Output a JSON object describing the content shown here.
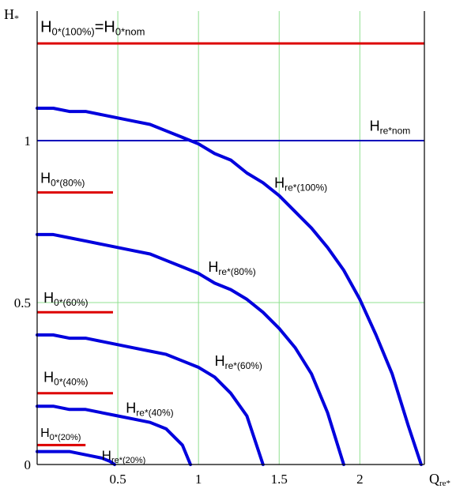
{
  "chart_data": {
    "type": "line",
    "title": "",
    "xlabel": "Q",
    "xlabel_sub": "re*",
    "ylabel": "H",
    "ylabel_sub": "*",
    "xlim": [
      0,
      2.4
    ],
    "ylim": [
      0,
      1.4
    ],
    "grid": true,
    "grid_color": "#90e090",
    "x_ticks": [
      {
        "value": 0.5,
        "label": "0.5"
      },
      {
        "value": 1,
        "label": "1"
      },
      {
        "value": 1.5,
        "label": "1.5"
      },
      {
        "value": 2,
        "label": "2"
      }
    ],
    "y_ticks": [
      {
        "value": 0,
        "label": "0"
      },
      {
        "value": 0.5,
        "label": "0.5"
      },
      {
        "value": 1,
        "label": "1"
      }
    ],
    "series": [
      {
        "color": "#0000dd",
        "width": 4,
        "x": [
          0,
          0.1,
          0.2,
          0.3,
          0.4,
          0.5,
          0.6,
          0.7,
          0.8,
          0.9,
          1.0,
          1.1,
          1.2,
          1.3,
          1.4,
          1.5,
          1.6,
          1.7,
          1.8,
          1.9,
          2.0,
          2.1,
          2.2,
          2.3,
          2.38
        ],
        "y": [
          1.1,
          1.1,
          1.09,
          1.09,
          1.08,
          1.07,
          1.06,
          1.05,
          1.03,
          1.01,
          0.99,
          0.96,
          0.94,
          0.9,
          0.87,
          0.83,
          0.78,
          0.73,
          0.67,
          0.6,
          0.51,
          0.4,
          0.28,
          0.12,
          0.0
        ]
      },
      {
        "color": "#0000dd",
        "width": 4,
        "x": [
          0,
          0.1,
          0.2,
          0.3,
          0.4,
          0.5,
          0.6,
          0.7,
          0.8,
          0.9,
          1.0,
          1.1,
          1.2,
          1.3,
          1.4,
          1.5,
          1.6,
          1.7,
          1.8,
          1.9
        ],
        "y": [
          0.71,
          0.71,
          0.7,
          0.69,
          0.68,
          0.67,
          0.66,
          0.65,
          0.63,
          0.61,
          0.59,
          0.56,
          0.54,
          0.51,
          0.47,
          0.42,
          0.36,
          0.28,
          0.16,
          0.0
        ]
      },
      {
        "color": "#0000dd",
        "width": 4,
        "x": [
          0,
          0.1,
          0.2,
          0.3,
          0.4,
          0.5,
          0.6,
          0.7,
          0.8,
          0.9,
          1.0,
          1.1,
          1.2,
          1.3,
          1.4
        ],
        "y": [
          0.4,
          0.4,
          0.39,
          0.39,
          0.38,
          0.37,
          0.36,
          0.35,
          0.34,
          0.32,
          0.3,
          0.27,
          0.22,
          0.15,
          0.0
        ]
      },
      {
        "color": "#0000dd",
        "width": 4,
        "x": [
          0,
          0.1,
          0.2,
          0.3,
          0.4,
          0.5,
          0.6,
          0.7,
          0.8,
          0.9,
          0.95
        ],
        "y": [
          0.18,
          0.18,
          0.17,
          0.17,
          0.16,
          0.15,
          0.14,
          0.13,
          0.11,
          0.06,
          0.0
        ]
      },
      {
        "color": "#0000dd",
        "width": 4,
        "x": [
          0,
          0.1,
          0.2,
          0.3,
          0.4,
          0.45,
          0.48
        ],
        "y": [
          0.04,
          0.04,
          0.04,
          0.03,
          0.02,
          0.01,
          0.0
        ]
      }
    ],
    "hlines": [
      {
        "y": 1.3,
        "x0": 0,
        "x1": 2.4,
        "color": "#dd0000",
        "width": 3
      },
      {
        "y": 1.0,
        "x0": 0,
        "x1": 2.4,
        "color": "#0000bb",
        "width": 2
      },
      {
        "y": 0.84,
        "x0": 0,
        "x1": 0.47,
        "color": "#dd0000",
        "width": 3
      },
      {
        "y": 0.47,
        "x0": 0,
        "x1": 0.47,
        "color": "#dd0000",
        "width": 3
      },
      {
        "y": 0.22,
        "x0": 0,
        "x1": 0.47,
        "color": "#dd0000",
        "width": 3
      },
      {
        "y": 0.06,
        "x0": 0,
        "x1": 0.3,
        "color": "#dd0000",
        "width": 3
      }
    ],
    "annotations": [
      {
        "name": "label-h0-100",
        "main": "H",
        "sub": "0*(100%)",
        "tail": "=H",
        "tail_sub": "0*nom",
        "x": 0.02,
        "y": 1.335,
        "size": 20
      },
      {
        "name": "label-hre-nom",
        "main": "H",
        "sub": "re*nom",
        "x": 2.06,
        "y": 1.03,
        "size": 18
      },
      {
        "name": "label-hre-100",
        "main": "H",
        "sub": "re*(100%)",
        "x": 1.47,
        "y": 0.855,
        "size": 18
      },
      {
        "name": "label-h0-80",
        "main": "H",
        "sub": "0*(80%)",
        "x": 0.02,
        "y": 0.87,
        "size": 18
      },
      {
        "name": "label-hre-80",
        "main": "H",
        "sub": "re*(80%)",
        "x": 1.06,
        "y": 0.595,
        "size": 18
      },
      {
        "name": "label-h0-60",
        "main": "H",
        "sub": "0*(60%)",
        "x": 0.04,
        "y": 0.5,
        "size": 18
      },
      {
        "name": "label-hre-60",
        "main": "H",
        "sub": "re*(60%)",
        "x": 1.1,
        "y": 0.305,
        "size": 18
      },
      {
        "name": "label-h0-40",
        "main": "H",
        "sub": "0*(40%)",
        "x": 0.04,
        "y": 0.255,
        "size": 18
      },
      {
        "name": "label-hre-40",
        "main": "H",
        "sub": "re*(40%)",
        "x": 0.55,
        "y": 0.16,
        "size": 18
      },
      {
        "name": "label-h0-20",
        "main": "H",
        "sub": "0*(20%)",
        "x": 0.02,
        "y": 0.085,
        "size": 16
      },
      {
        "name": "label-hre-20",
        "main": "H",
        "sub": "re*(20%)",
        "x": 0.4,
        "y": 0.015,
        "size": 17
      }
    ]
  }
}
